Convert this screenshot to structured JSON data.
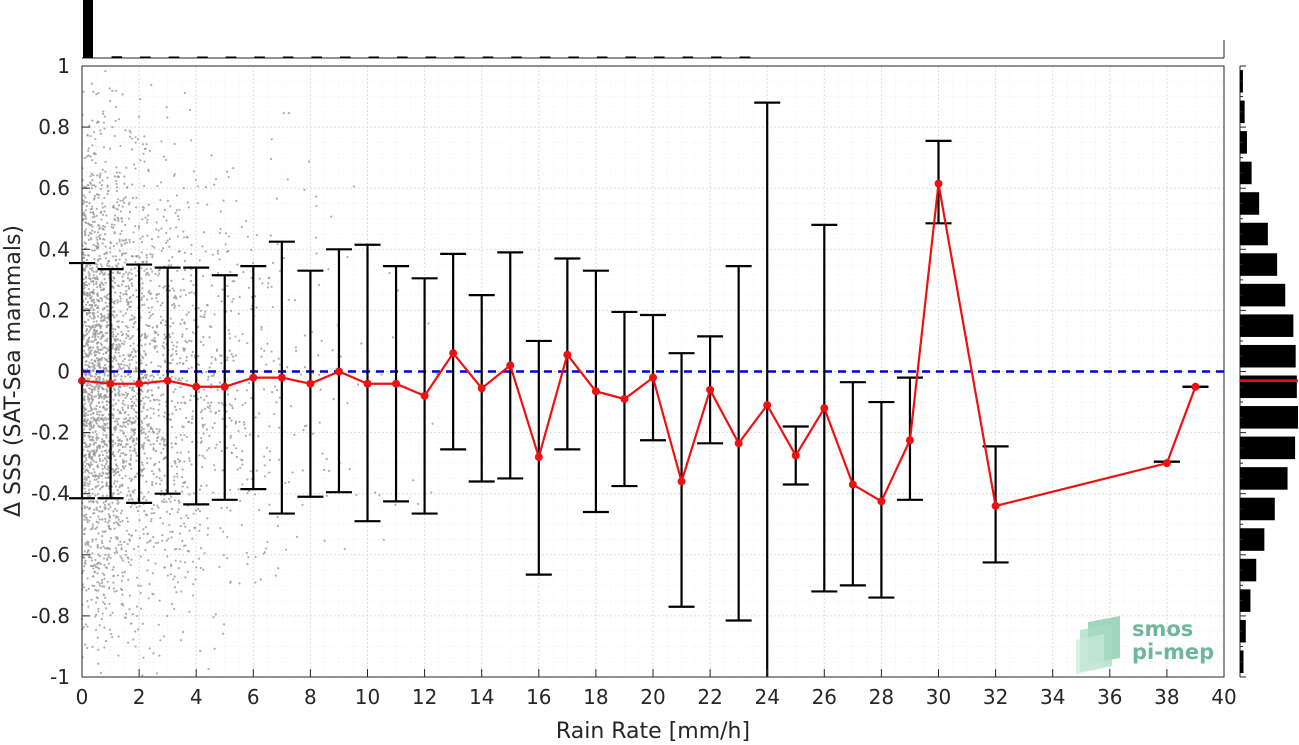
{
  "chart_data": {
    "type": "line",
    "xlabel": "Rain Rate [mm/h]",
    "ylabel": "Δ SSS (SAT-Sea mammals)",
    "xlim": [
      0,
      40
    ],
    "ylim": [
      -1,
      1
    ],
    "xticks": [
      "0",
      "2",
      "4",
      "6",
      "8",
      "10",
      "12",
      "14",
      "16",
      "18",
      "20",
      "22",
      "24",
      "26",
      "28",
      "30",
      "32",
      "34",
      "36",
      "38",
      "40"
    ],
    "yticks": [
      "1",
      "0.8",
      "0.6",
      "0.4",
      "0.2",
      "0",
      "-0.2",
      "-0.4",
      "-0.6",
      "-0.8",
      "-1"
    ],
    "grid": true,
    "reference_line": {
      "y": 0,
      "color": "#0000dd",
      "style": "dashed"
    },
    "series": [
      {
        "color": "#ee1111",
        "x": [
          0,
          1,
          2,
          3,
          4,
          5,
          6,
          7,
          8,
          9,
          10,
          11,
          12,
          13,
          14,
          15,
          16,
          17,
          18,
          19,
          20,
          21,
          22,
          23,
          24,
          25,
          26,
          27,
          28,
          29,
          30,
          32,
          38,
          39
        ],
        "y": [
          -0.03,
          -0.04,
          -0.04,
          -0.03,
          -0.05,
          -0.05,
          -0.02,
          -0.02,
          -0.04,
          0.0,
          -0.04,
          -0.04,
          -0.08,
          0.06,
          -0.055,
          0.02,
          -0.28,
          0.055,
          -0.065,
          -0.09,
          -0.02,
          -0.36,
          -0.06,
          -0.235,
          -0.11,
          -0.275,
          -0.12,
          -0.37,
          -0.425,
          -0.225,
          0.615,
          -0.44,
          -0.3,
          -0.05
        ],
        "upper": [
          0.355,
          0.335,
          0.35,
          0.34,
          0.34,
          0.315,
          0.345,
          0.425,
          0.33,
          0.4,
          0.415,
          0.345,
          0.305,
          0.385,
          0.25,
          0.39,
          0.1,
          0.37,
          0.33,
          0.195,
          0.185,
          0.06,
          0.115,
          0.345,
          0.88,
          -0.18,
          0.48,
          -0.035,
          -0.1,
          -0.02,
          0.755,
          -0.245,
          -0.295,
          -0.05
        ],
        "lower": [
          -0.415,
          -0.415,
          -0.43,
          -0.4,
          -0.435,
          -0.42,
          -0.385,
          -0.465,
          -0.41,
          -0.395,
          -0.49,
          -0.425,
          -0.465,
          -0.255,
          -0.36,
          -0.35,
          -0.665,
          -0.255,
          -0.46,
          -0.375,
          -0.225,
          -0.77,
          -0.235,
          -0.815,
          -1.1,
          -0.37,
          -0.72,
          -0.7,
          -0.74,
          -0.42,
          0.485,
          -0.625,
          -0.295,
          -0.05
        ]
      }
    ],
    "scatter": {
      "color": "#999999",
      "description_density": "dense near x=0, sparse beyond x=12"
    },
    "top_histogram": {
      "bin_width": 1,
      "values": [
        1.0,
        0.03,
        0.02,
        0.02,
        0.015,
        0.015,
        0.01,
        0.01,
        0.01,
        0.008,
        0.008,
        0.007,
        0.006,
        0.006,
        0.005,
        0.005,
        0.004,
        0.004,
        0.003,
        0.003,
        0.003,
        0.002,
        0.002,
        0.002
      ]
    },
    "right_histogram": {
      "bin_edges": [
        -1,
        -0.9,
        -0.8,
        -0.7,
        -0.6,
        -0.5,
        -0.4,
        -0.3,
        -0.2,
        -0.1,
        0,
        0.1,
        0.2,
        0.3,
        0.4,
        0.5,
        0.6,
        0.7,
        0.8,
        0.9,
        1
      ],
      "values": [
        0.06,
        0.1,
        0.18,
        0.28,
        0.42,
        0.6,
        0.82,
        0.95,
        1.0,
        0.98,
        0.96,
        0.92,
        0.78,
        0.64,
        0.48,
        0.33,
        0.2,
        0.12,
        0.08,
        0.05
      ],
      "median_line": {
        "y": -0.03,
        "color": "#ee1111"
      }
    }
  },
  "logo": {
    "line1": "smos",
    "line2": "pi-mep"
  }
}
